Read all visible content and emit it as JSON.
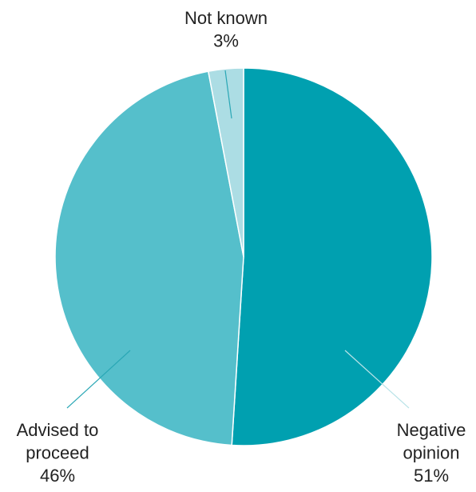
{
  "chart_data": {
    "type": "pie",
    "slices": [
      {
        "label_lines": [
          "Negative",
          "opinion"
        ],
        "percent_label": "51%",
        "value": 51,
        "color": "#00a0b0"
      },
      {
        "label_lines": [
          "Advised to",
          "proceed"
        ],
        "percent_label": "46%",
        "value": 46,
        "color": "#55bfcb"
      },
      {
        "label_lines": [
          "Not known"
        ],
        "percent_label": "3%",
        "value": 3,
        "color": "#acdde4"
      }
    ],
    "leader_color": "#2aa7b5"
  }
}
